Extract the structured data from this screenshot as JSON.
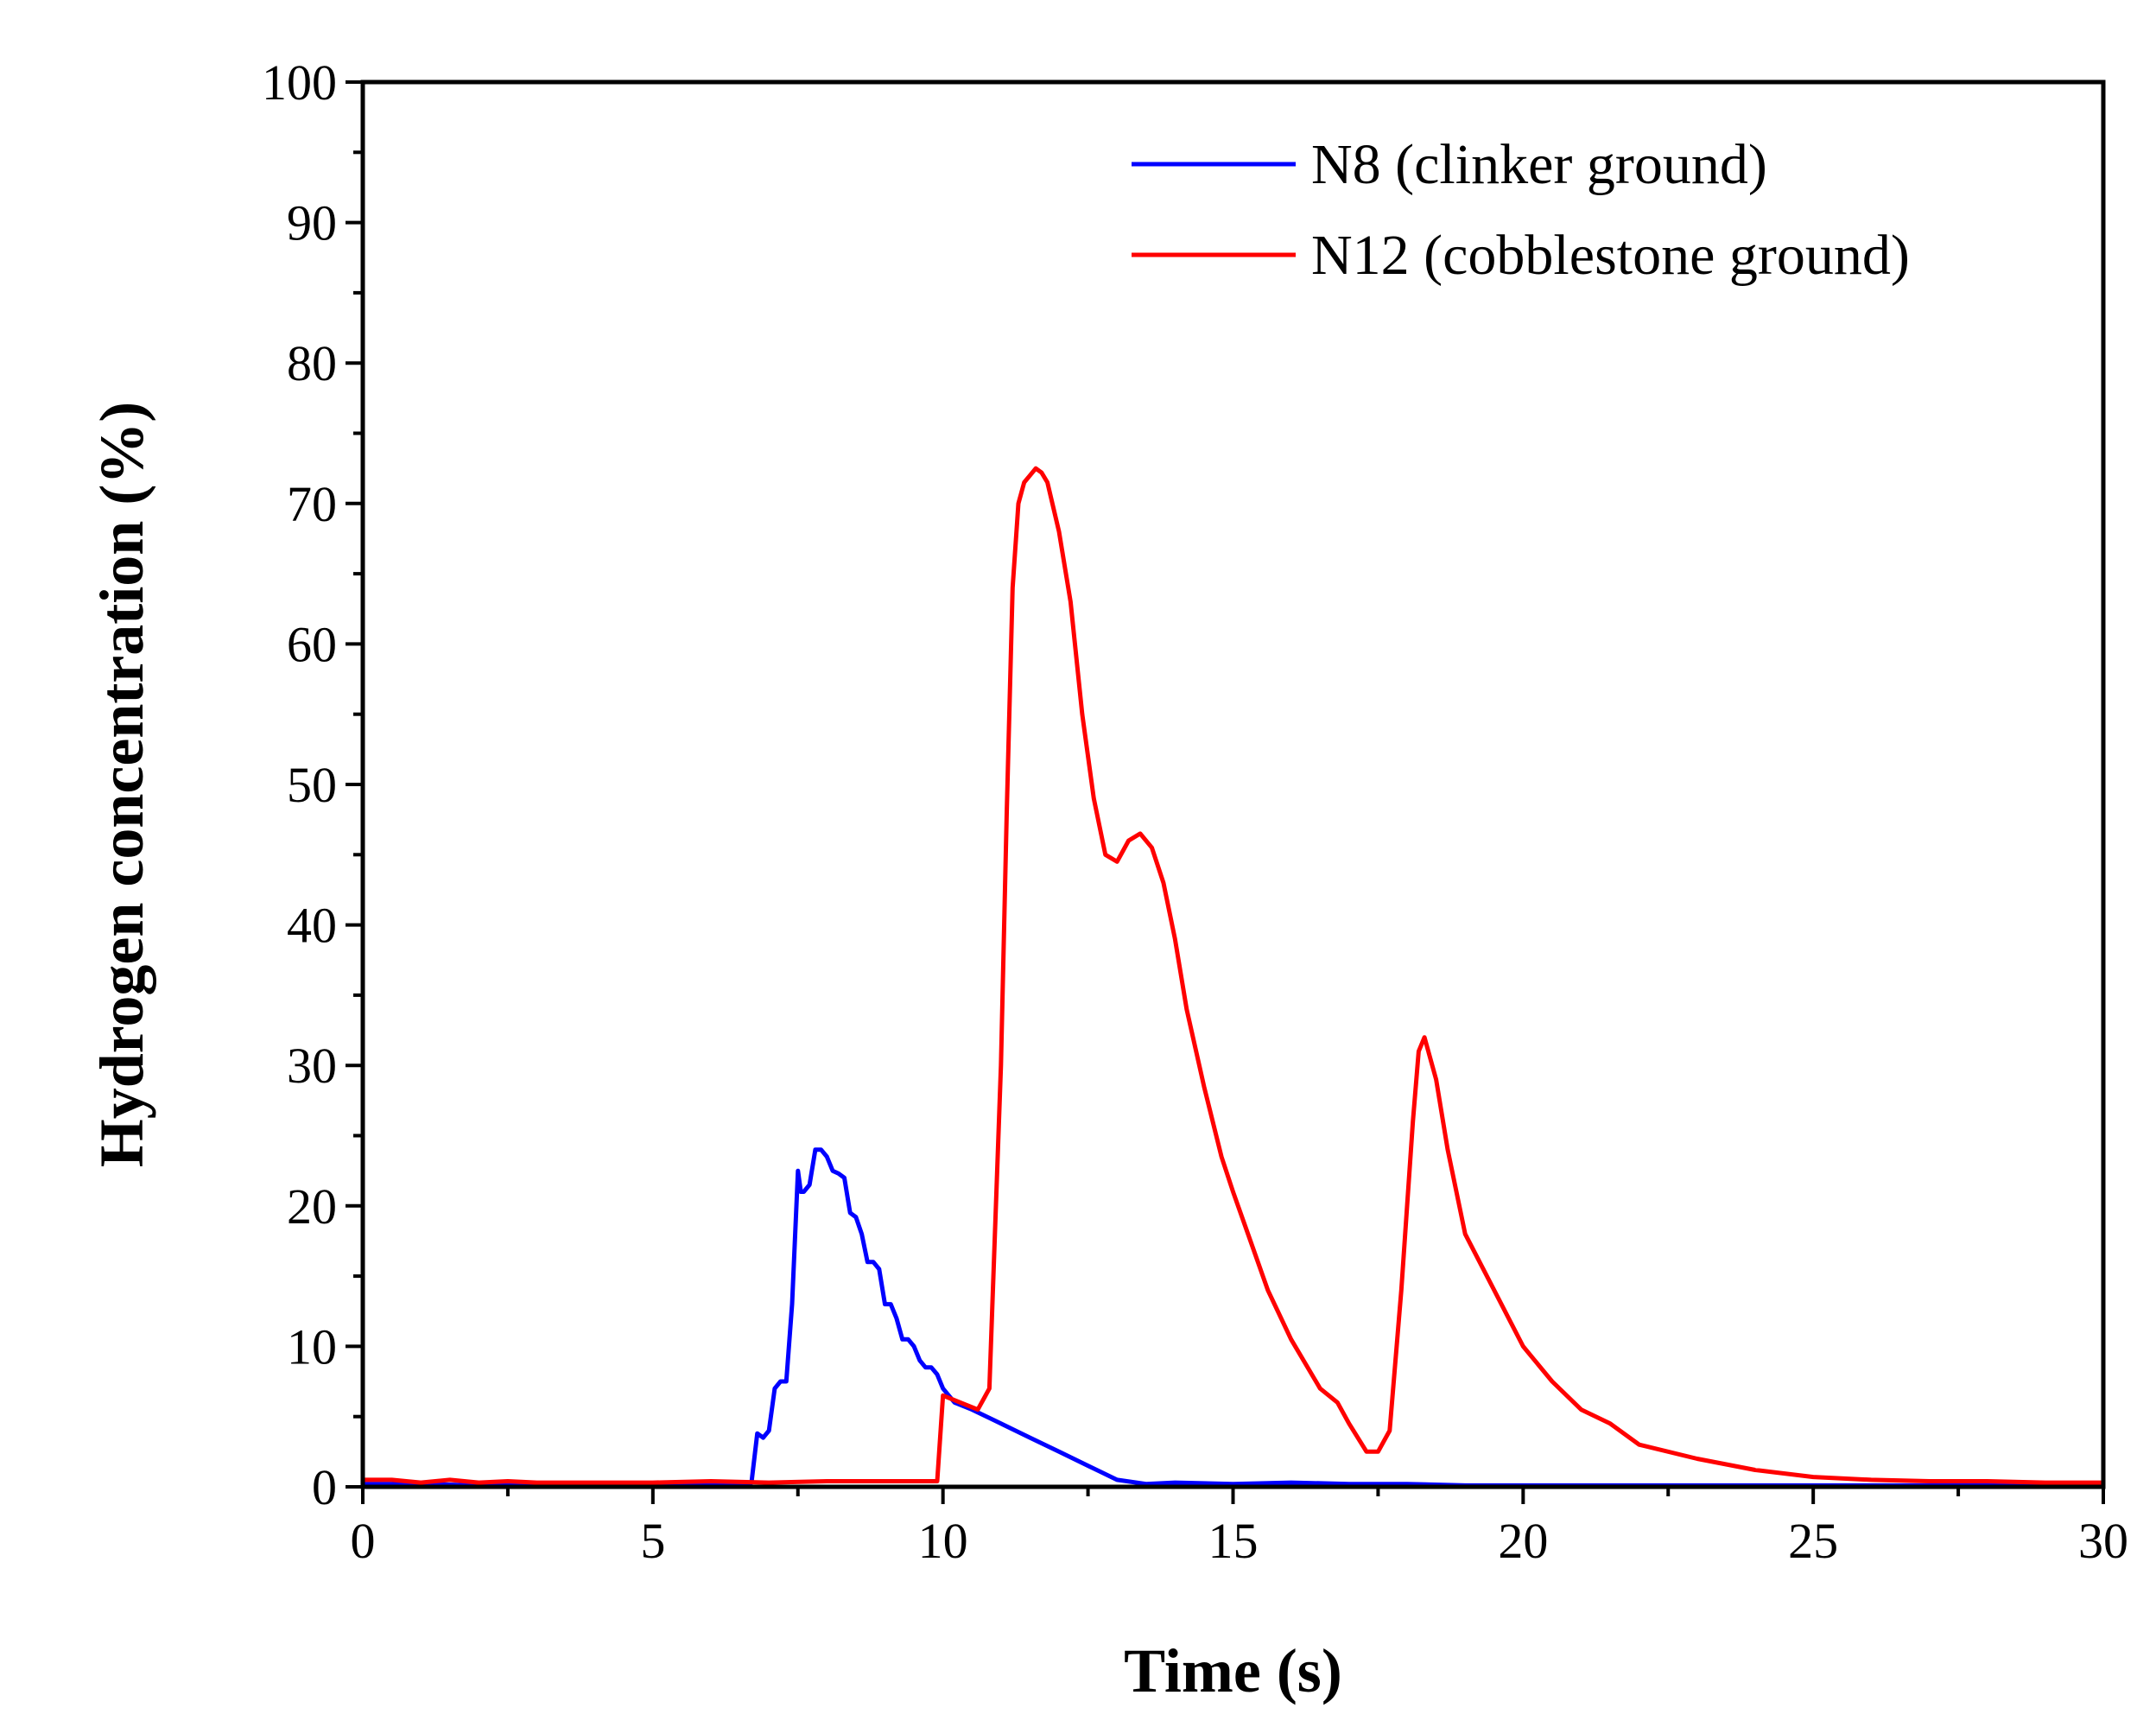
{
  "chart_data": {
    "type": "line",
    "title": "",
    "xlabel": "Time (s)",
    "ylabel": "Hydrogen concentration (%)",
    "xlim": [
      0,
      30
    ],
    "ylim": [
      0,
      100
    ],
    "xticks": [
      0,
      5,
      10,
      15,
      20,
      25,
      30
    ],
    "xtick_labels": [
      "0",
      "5",
      "10",
      "15",
      "20",
      "25",
      "30"
    ],
    "yticks": [
      0,
      10,
      20,
      30,
      40,
      50,
      60,
      70,
      80,
      90,
      100
    ],
    "ytick_labels": [
      "0",
      "10",
      "20",
      "30",
      "40",
      "50",
      "60",
      "70",
      "80",
      "90",
      "100"
    ],
    "grid": false,
    "legend_position": "top-right",
    "series": [
      {
        "name": "N8 (clinker ground)",
        "color": "#0000ff",
        "x": [
          0,
          1,
          2,
          3,
          4,
          5,
          6,
          6.7,
          6.8,
          6.9,
          7.0,
          7.1,
          7.2,
          7.3,
          7.4,
          7.5,
          7.55,
          7.6,
          7.7,
          7.8,
          7.9,
          8.0,
          8.1,
          8.2,
          8.3,
          8.4,
          8.5,
          8.6,
          8.7,
          8.8,
          8.9,
          9.0,
          9.1,
          9.2,
          9.3,
          9.4,
          9.5,
          9.6,
          9.7,
          9.8,
          9.9,
          10.0,
          10.1,
          10.2,
          10.5,
          11.0,
          11.5,
          12.0,
          12.5,
          13.0,
          13.5,
          14,
          15,
          16,
          17,
          18,
          19,
          20,
          22,
          25,
          28,
          30
        ],
        "y": [
          0.2,
          0.2,
          0.1,
          0.2,
          0.1,
          0.2,
          0.2,
          0.3,
          3.8,
          3.5,
          4.0,
          7.0,
          7.5,
          7.5,
          13.0,
          22.5,
          21.0,
          21.0,
          21.5,
          24.0,
          24.0,
          23.5,
          22.5,
          22.3,
          22.0,
          19.5,
          19.2,
          18.0,
          16.0,
          16.0,
          15.5,
          13.0,
          13.0,
          12.0,
          10.5,
          10.5,
          10.0,
          9.0,
          8.5,
          8.5,
          8.0,
          7.0,
          6.5,
          6.0,
          5.5,
          4.5,
          3.5,
          2.5,
          1.5,
          0.5,
          0.2,
          0.3,
          0.2,
          0.3,
          0.2,
          0.2,
          0.1,
          0.1,
          0.1,
          0.1,
          0.1,
          0.1
        ]
      },
      {
        "name": "N12 (cobblestone ground)",
        "color": "#ff0000",
        "x": [
          0,
          0.5,
          1,
          1.5,
          2,
          2.5,
          3,
          4,
          5,
          6,
          7,
          8,
          9,
          9.9,
          10.0,
          10.3,
          10.6,
          10.8,
          11.0,
          11.1,
          11.2,
          11.3,
          11.4,
          11.5,
          11.6,
          11.7,
          11.8,
          12.0,
          12.2,
          12.4,
          12.6,
          12.8,
          13.0,
          13.2,
          13.4,
          13.6,
          13.8,
          14.0,
          14.2,
          14.5,
          14.8,
          15.0,
          15.3,
          15.6,
          16.0,
          16.5,
          16.8,
          17.0,
          17.3,
          17.5,
          17.7,
          17.9,
          18.1,
          18.2,
          18.3,
          18.5,
          18.7,
          19.0,
          19.5,
          20.0,
          20.5,
          21.0,
          21.5,
          22,
          23,
          24,
          25,
          26,
          27,
          28,
          29,
          30
        ],
        "y": [
          0.5,
          0.5,
          0.3,
          0.5,
          0.3,
          0.4,
          0.3,
          0.3,
          0.3,
          0.4,
          0.3,
          0.4,
          0.4,
          0.4,
          6.5,
          6.0,
          5.5,
          7.0,
          30.0,
          48.0,
          64.0,
          70.0,
          71.5,
          72.0,
          72.5,
          72.2,
          71.5,
          68.0,
          63.0,
          55.0,
          49.0,
          45.0,
          44.5,
          46.0,
          46.5,
          45.5,
          43.0,
          39.0,
          34.0,
          28.5,
          23.5,
          21.0,
          17.5,
          14.0,
          10.5,
          7.0,
          6.0,
          4.5,
          2.5,
          2.5,
          4.0,
          14.0,
          26.0,
          31.0,
          32.0,
          29.0,
          24.0,
          18.0,
          14.0,
          10.0,
          7.5,
          5.5,
          4.5,
          3.0,
          2.0,
          1.2,
          0.7,
          0.5,
          0.4,
          0.4,
          0.3,
          0.3
        ]
      }
    ]
  }
}
